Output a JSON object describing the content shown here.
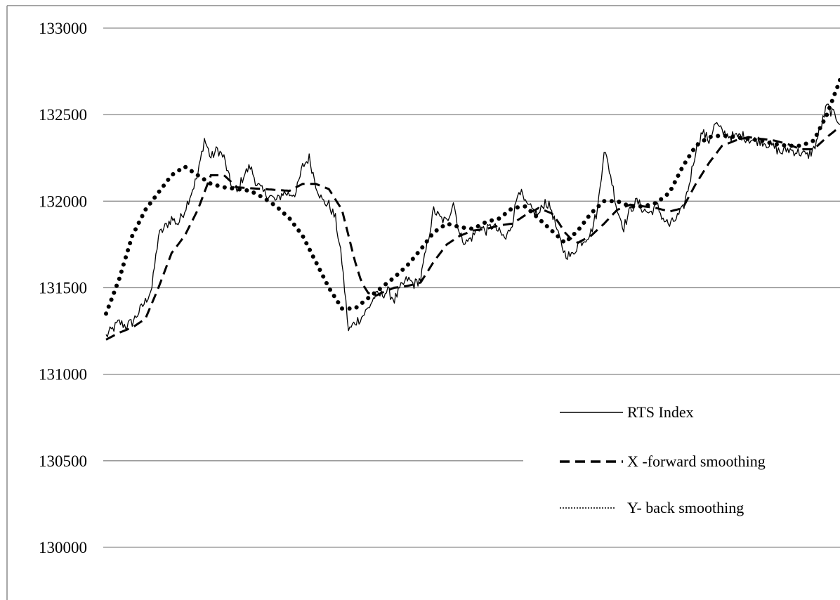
{
  "chart_data": {
    "type": "line",
    "title": "",
    "xlabel": "",
    "ylabel": "",
    "ylim": [
      130000,
      133000
    ],
    "yticks": [
      133000,
      132500,
      132000,
      131500,
      131000,
      130500,
      130000
    ],
    "grid": "horizontal",
    "legend_position": "bottom-right",
    "n_points": 500,
    "series": [
      {
        "name": "RTS Index",
        "style": "solid",
        "color": "#000000",
        "anchors": [
          [
            0,
            131220
          ],
          [
            5,
            131260
          ],
          [
            10,
            131300
          ],
          [
            15,
            131280
          ],
          [
            20,
            131300
          ],
          [
            25,
            131360
          ],
          [
            30,
            131420
          ],
          [
            35,
            131500
          ],
          [
            40,
            131800
          ],
          [
            45,
            131850
          ],
          [
            50,
            131900
          ],
          [
            55,
            131870
          ],
          [
            60,
            131950
          ],
          [
            65,
            132050
          ],
          [
            70,
            132150
          ],
          [
            75,
            132360
          ],
          [
            80,
            132250
          ],
          [
            85,
            132300
          ],
          [
            90,
            132250
          ],
          [
            95,
            132100
          ],
          [
            100,
            132050
          ],
          [
            105,
            132150
          ],
          [
            110,
            132200
          ],
          [
            115,
            132100
          ],
          [
            120,
            132050
          ],
          [
            125,
            132030
          ],
          [
            130,
            132000
          ],
          [
            135,
            132050
          ],
          [
            140,
            132040
          ],
          [
            145,
            132050
          ],
          [
            150,
            132200
          ],
          [
            155,
            132250
          ],
          [
            160,
            132100
          ],
          [
            165,
            132000
          ],
          [
            170,
            131980
          ],
          [
            175,
            131900
          ],
          [
            180,
            131650
          ],
          [
            185,
            131250
          ],
          [
            190,
            131300
          ],
          [
            195,
            131330
          ],
          [
            200,
            131380
          ],
          [
            205,
            131450
          ],
          [
            210,
            131460
          ],
          [
            215,
            131480
          ],
          [
            220,
            131430
          ],
          [
            225,
            131500
          ],
          [
            230,
            131550
          ],
          [
            235,
            131520
          ],
          [
            240,
            131550
          ],
          [
            245,
            131750
          ],
          [
            250,
            131950
          ],
          [
            255,
            131900
          ],
          [
            260,
            131880
          ],
          [
            265,
            132000
          ],
          [
            270,
            131800
          ],
          [
            275,
            131760
          ],
          [
            280,
            131800
          ],
          [
            285,
            131850
          ],
          [
            290,
            131830
          ],
          [
            295,
            131860
          ],
          [
            300,
            131820
          ],
          [
            305,
            131780
          ],
          [
            310,
            131880
          ],
          [
            315,
            132080
          ],
          [
            320,
            131980
          ],
          [
            325,
            131950
          ],
          [
            330,
            131920
          ],
          [
            335,
            132000
          ],
          [
            340,
            131950
          ],
          [
            345,
            131800
          ],
          [
            350,
            131700
          ],
          [
            355,
            131680
          ],
          [
            360,
            131750
          ],
          [
            365,
            131780
          ],
          [
            370,
            131820
          ],
          [
            375,
            131950
          ],
          [
            380,
            132300
          ],
          [
            385,
            132150
          ],
          [
            390,
            131950
          ],
          [
            395,
            131850
          ],
          [
            400,
            131950
          ],
          [
            405,
            132000
          ],
          [
            410,
            131950
          ],
          [
            415,
            131930
          ],
          [
            420,
            131980
          ],
          [
            425,
            131900
          ],
          [
            430,
            131860
          ],
          [
            435,
            131900
          ],
          [
            440,
            131950
          ],
          [
            445,
            132100
          ],
          [
            450,
            132300
          ],
          [
            455,
            132400
          ],
          [
            460,
            132350
          ],
          [
            465,
            132450
          ],
          [
            470,
            132400
          ],
          [
            475,
            132380
          ],
          [
            480,
            132370
          ],
          [
            485,
            132380
          ],
          [
            490,
            132360
          ],
          [
            495,
            132350
          ],
          [
            500,
            132350
          ],
          [
            505,
            132330
          ],
          [
            510,
            132310
          ],
          [
            515,
            132280
          ],
          [
            520,
            132300
          ],
          [
            525,
            132290
          ],
          [
            530,
            132280
          ],
          [
            535,
            132260
          ],
          [
            540,
            132300
          ],
          [
            545,
            132420
          ],
          [
            550,
            132550
          ],
          [
            555,
            132500
          ],
          [
            560,
            132460
          ]
        ]
      },
      {
        "name": "X -forward smoothing",
        "style": "dashed",
        "color": "#000000",
        "anchors": [
          [
            0,
            131200
          ],
          [
            10,
            131240
          ],
          [
            20,
            131270
          ],
          [
            30,
            131320
          ],
          [
            40,
            131500
          ],
          [
            50,
            131700
          ],
          [
            60,
            131800
          ],
          [
            70,
            131950
          ],
          [
            80,
            132150
          ],
          [
            90,
            132150
          ],
          [
            100,
            132080
          ],
          [
            120,
            132070
          ],
          [
            140,
            132060
          ],
          [
            150,
            132100
          ],
          [
            160,
            132100
          ],
          [
            170,
            132070
          ],
          [
            180,
            131950
          ],
          [
            185,
            131800
          ],
          [
            190,
            131650
          ],
          [
            195,
            131530
          ],
          [
            200,
            131470
          ],
          [
            205,
            131450
          ],
          [
            210,
            131470
          ],
          [
            220,
            131500
          ],
          [
            230,
            131510
          ],
          [
            240,
            131530
          ],
          [
            250,
            131650
          ],
          [
            260,
            131750
          ],
          [
            270,
            131800
          ],
          [
            280,
            131830
          ],
          [
            290,
            131840
          ],
          [
            300,
            131860
          ],
          [
            310,
            131870
          ],
          [
            320,
            131920
          ],
          [
            330,
            131960
          ],
          [
            340,
            131930
          ],
          [
            345,
            131880
          ],
          [
            350,
            131820
          ],
          [
            355,
            131780
          ],
          [
            360,
            131760
          ],
          [
            370,
            131800
          ],
          [
            380,
            131870
          ],
          [
            390,
            131950
          ],
          [
            400,
            131980
          ],
          [
            410,
            131970
          ],
          [
            420,
            131960
          ],
          [
            430,
            131940
          ],
          [
            440,
            131960
          ],
          [
            450,
            132100
          ],
          [
            460,
            132220
          ],
          [
            470,
            132320
          ],
          [
            480,
            132350
          ],
          [
            490,
            132370
          ],
          [
            500,
            132360
          ],
          [
            510,
            132350
          ],
          [
            520,
            132330
          ],
          [
            530,
            132300
          ],
          [
            540,
            132300
          ],
          [
            550,
            132370
          ],
          [
            560,
            132430
          ]
        ]
      },
      {
        "name": "Y- back smoothing",
        "style": "dotted",
        "color": "#000000",
        "anchors": [
          [
            0,
            131350
          ],
          [
            10,
            131550
          ],
          [
            20,
            131800
          ],
          [
            30,
            131950
          ],
          [
            40,
            132050
          ],
          [
            50,
            132150
          ],
          [
            60,
            132200
          ],
          [
            70,
            132150
          ],
          [
            80,
            132100
          ],
          [
            90,
            132080
          ],
          [
            100,
            132070
          ],
          [
            110,
            132060
          ],
          [
            120,
            132020
          ],
          [
            130,
            131970
          ],
          [
            140,
            131900
          ],
          [
            150,
            131800
          ],
          [
            160,
            131650
          ],
          [
            170,
            131500
          ],
          [
            180,
            131380
          ],
          [
            190,
            131380
          ],
          [
            200,
            131440
          ],
          [
            210,
            131500
          ],
          [
            220,
            131560
          ],
          [
            230,
            131630
          ],
          [
            240,
            131720
          ],
          [
            250,
            131820
          ],
          [
            260,
            131870
          ],
          [
            270,
            131850
          ],
          [
            280,
            131840
          ],
          [
            290,
            131880
          ],
          [
            300,
            131900
          ],
          [
            310,
            131960
          ],
          [
            320,
            131970
          ],
          [
            330,
            131900
          ],
          [
            340,
            131830
          ],
          [
            350,
            131760
          ],
          [
            360,
            131830
          ],
          [
            370,
            131930
          ],
          [
            380,
            132000
          ],
          [
            390,
            132000
          ],
          [
            400,
            131970
          ],
          [
            410,
            131970
          ],
          [
            420,
            131990
          ],
          [
            430,
            132050
          ],
          [
            440,
            132200
          ],
          [
            450,
            132320
          ],
          [
            460,
            132370
          ],
          [
            470,
            132380
          ],
          [
            480,
            132370
          ],
          [
            490,
            132360
          ],
          [
            500,
            132350
          ],
          [
            510,
            132330
          ],
          [
            520,
            132320
          ],
          [
            530,
            132320
          ],
          [
            540,
            132350
          ],
          [
            550,
            132500
          ],
          [
            560,
            132700
          ]
        ]
      }
    ]
  }
}
